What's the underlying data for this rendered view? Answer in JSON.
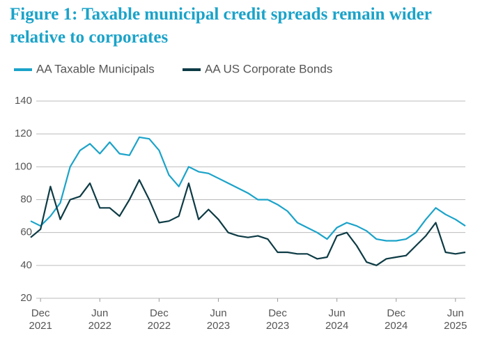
{
  "chart_data": {
    "type": "line",
    "title": "Figure 1: Taxable municipal credit spreads remain wider relative to corporates",
    "x": [
      "2021-11",
      "2021-12",
      "2022-01",
      "2022-02",
      "2022-03",
      "2022-04",
      "2022-05",
      "2022-06",
      "2022-07",
      "2022-08",
      "2022-09",
      "2022-10",
      "2022-11",
      "2022-12",
      "2023-01",
      "2023-02",
      "2023-03",
      "2023-04",
      "2023-05",
      "2023-06",
      "2023-07",
      "2023-08",
      "2023-09",
      "2023-10",
      "2023-11",
      "2023-12",
      "2024-01",
      "2024-02",
      "2024-03",
      "2024-04",
      "2024-05",
      "2024-06",
      "2024-07",
      "2024-08",
      "2024-09",
      "2024-10",
      "2024-11",
      "2024-12",
      "2025-01",
      "2025-02",
      "2025-03",
      "2025-04",
      "2025-05",
      "2025-06",
      "2025-07"
    ],
    "series": [
      {
        "name": "AA Taxable Municipals",
        "color": "#1ba3c9",
        "values": [
          67,
          64,
          70,
          78,
          100,
          110,
          114,
          108,
          115,
          108,
          107,
          118,
          117,
          110,
          95,
          88,
          100,
          97,
          96,
          93,
          90,
          87,
          84,
          80,
          80,
          77,
          73,
          66,
          63,
          60,
          56,
          63,
          66,
          64,
          61,
          56,
          55,
          55,
          56,
          60,
          68,
          75,
          71,
          68,
          64
        ]
      },
      {
        "name": "AA US Corporate Bonds",
        "color": "#0d3b45",
        "values": [
          57,
          62,
          88,
          68,
          80,
          82,
          90,
          75,
          75,
          70,
          80,
          92,
          80,
          66,
          67,
          70,
          90,
          68,
          74,
          68,
          60,
          58,
          57,
          58,
          56,
          48,
          48,
          47,
          47,
          44,
          45,
          58,
          60,
          52,
          42,
          40,
          44,
          45,
          46,
          52,
          58,
          66,
          48,
          47,
          48
        ]
      }
    ],
    "xlim": [
      "2021-11",
      "2025-07"
    ],
    "xticks": [
      {
        "value": "2021-12",
        "label": "Dec 2021"
      },
      {
        "value": "2022-06",
        "label": "Jun 2022"
      },
      {
        "value": "2022-12",
        "label": "Dec 2022"
      },
      {
        "value": "2023-06",
        "label": "Jun 2023"
      },
      {
        "value": "2023-12",
        "label": "Dec 2023"
      },
      {
        "value": "2024-06",
        "label": "Jun 2024"
      },
      {
        "value": "2024-12",
        "label": "Dec 2024"
      },
      {
        "value": "2025-06",
        "label": "Jun 2025"
      }
    ],
    "ylim": [
      20,
      140
    ],
    "yticks": [
      20,
      40,
      60,
      80,
      100,
      120,
      140
    ],
    "grid": true
  }
}
